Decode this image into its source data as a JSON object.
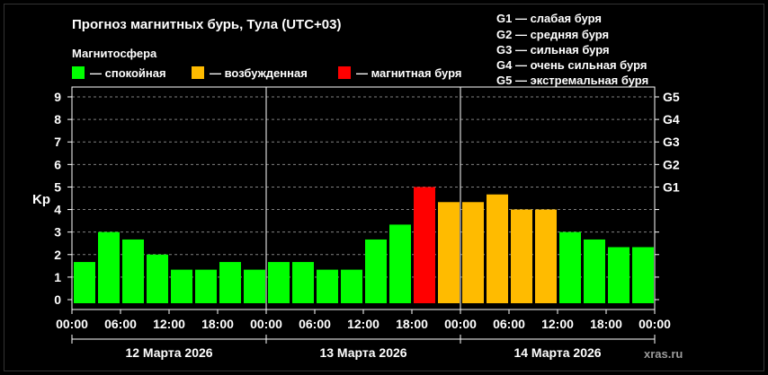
{
  "header": {
    "title": "Прогноз магнитных бурь, Тула (UTC+03)",
    "subtitle": "Магнитосфера"
  },
  "legend": [
    {
      "label": "— спокойная",
      "color": "#00ff00"
    },
    {
      "label": "— возбужденная",
      "color": "#ffbb00"
    },
    {
      "label": "— магнитная буря",
      "color": "#ff0000"
    }
  ],
  "g_legend": [
    "G1 — слабая буря",
    "G2 — средняя буря",
    "G3 — сильная буря",
    "G4 — очень сильная буря",
    "G5 — экстремальная буря"
  ],
  "brand": "xras.ru",
  "chart_data": {
    "type": "bar",
    "ylabel": "Kp",
    "ylim": [
      0,
      9
    ],
    "yticks": [
      "0",
      "1",
      "2",
      "3",
      "4",
      "5",
      "6",
      "7",
      "8",
      "9"
    ],
    "g_scale": [
      {
        "label": "G1",
        "kp": 5
      },
      {
        "label": "G2",
        "kp": 6
      },
      {
        "label": "G3",
        "kp": 7
      },
      {
        "label": "G4",
        "kp": 8
      },
      {
        "label": "G5",
        "kp": 9
      }
    ],
    "xticks": [
      "00:00",
      "06:00",
      "12:00",
      "18:00",
      "00:00",
      "06:00",
      "12:00",
      "18:00",
      "00:00",
      "06:00",
      "12:00",
      "18:00",
      "00:00"
    ],
    "days": [
      "12 Марта 2026",
      "13 Марта 2026",
      "14 Марта 2026"
    ],
    "interval_hours": 3,
    "values": [
      1.67,
      3.0,
      2.67,
      2.0,
      1.33,
      1.33,
      1.67,
      1.33,
      1.67,
      1.67,
      1.33,
      1.33,
      2.67,
      3.33,
      5.0,
      4.33,
      4.33,
      4.67,
      4.0,
      4.0,
      3.0,
      2.67,
      2.33,
      2.33
    ],
    "status": [
      "calm",
      "calm",
      "calm",
      "calm",
      "calm",
      "calm",
      "calm",
      "calm",
      "calm",
      "calm",
      "calm",
      "calm",
      "calm",
      "calm",
      "storm",
      "excited",
      "excited",
      "excited",
      "excited",
      "excited",
      "calm",
      "calm",
      "calm",
      "calm"
    ],
    "colors": {
      "calm": "#00ff00",
      "excited": "#ffbb00",
      "storm": "#ff0000",
      "axis": "#ffffff",
      "grid": "#808080"
    }
  }
}
